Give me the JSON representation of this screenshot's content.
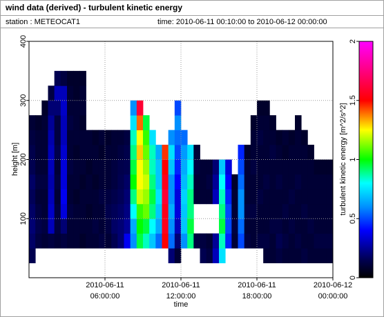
{
  "chart_data": {
    "type": "heatmap",
    "title": "wind data (derived) - turbulent kinetic energy",
    "station": "station : METEOCAT1",
    "time_range": "time: 2010-06-11 00:10:00 to 2010-06-12 00:00:00",
    "xlabel": "time",
    "ylabel": "height [m]",
    "colorbar_label": "turbulent kinetic energy [m^2/s^2]",
    "grid": true,
    "xlim": [
      "2010-06-11T00:00",
      "2010-06-12T00:00"
    ],
    "xticks": [
      {
        "value": "2010-06-11T06:00",
        "label": [
          "2010-06-11",
          "06:00:00"
        ]
      },
      {
        "value": "2010-06-11T12:00",
        "label": [
          "2010-06-11",
          "12:00:00"
        ]
      },
      {
        "value": "2010-06-11T18:00",
        "label": [
          "2010-06-11",
          "18:00:00"
        ]
      },
      {
        "value": "2010-06-12T00:00",
        "label": [
          "2010-06-12",
          "00:00:00"
        ]
      }
    ],
    "ylim": [
      0,
      400
    ],
    "yticks": [
      100,
      200,
      300,
      400
    ],
    "clim": [
      0,
      2
    ],
    "cticks": [
      0,
      0.5,
      1,
      1.5,
      2
    ],
    "colorscale": [
      [
        0,
        "#000000"
      ],
      [
        0.15,
        "#000050"
      ],
      [
        0.4,
        "#0000ff"
      ],
      [
        0.6,
        "#0090ff"
      ],
      [
        0.8,
        "#00ffff"
      ],
      [
        1,
        "#00ff00"
      ],
      [
        1.25,
        "#ffff00"
      ],
      [
        1.5,
        "#ff0000"
      ],
      [
        2,
        "#ff00ff"
      ]
    ],
    "x_edges": [
      "2010-06-11T00:00",
      "2010-06-11T00:30",
      "2010-06-11T01:00",
      "2010-06-11T01:30",
      "2010-06-11T02:00",
      "2010-06-11T02:30",
      "2010-06-11T03:00",
      "2010-06-11T03:30",
      "2010-06-11T04:00",
      "2010-06-11T04:30",
      "2010-06-11T05:00",
      "2010-06-11T05:30",
      "2010-06-11T06:00",
      "2010-06-11T06:30",
      "2010-06-11T07:00",
      "2010-06-11T07:30",
      "2010-06-11T08:00",
      "2010-06-11T08:30",
      "2010-06-11T09:00",
      "2010-06-11T09:30",
      "2010-06-11T10:00",
      "2010-06-11T10:30",
      "2010-06-11T11:00",
      "2010-06-11T11:30",
      "2010-06-11T12:00",
      "2010-06-11T12:30",
      "2010-06-11T13:00",
      "2010-06-11T13:30",
      "2010-06-11T14:00",
      "2010-06-11T14:30",
      "2010-06-11T15:00",
      "2010-06-11T15:30",
      "2010-06-11T16:00",
      "2010-06-11T16:30",
      "2010-06-11T17:00",
      "2010-06-11T17:30",
      "2010-06-11T18:00",
      "2010-06-11T18:30",
      "2010-06-11T19:00",
      "2010-06-11T19:30",
      "2010-06-11T20:00",
      "2010-06-11T20:30",
      "2010-06-11T21:00",
      "2010-06-11T21:30",
      "2010-06-11T22:00",
      "2010-06-11T22:30",
      "2010-06-11T23:00",
      "2010-06-11T23:30",
      "2010-06-12T00:00"
    ],
    "y_edges": [
      0,
      25,
      50,
      75,
      100,
      125,
      150,
      175,
      200,
      225,
      250,
      275,
      300,
      325,
      350,
      375,
      400
    ],
    "values": [
      [
        null,
        0.15,
        0.18,
        0.2,
        0.18,
        0.16,
        0.18,
        0.15,
        0.14,
        0.12,
        0.1,
        null,
        null,
        null,
        null,
        null
      ],
      [
        null,
        null,
        0.12,
        0.14,
        0.12,
        0.1,
        0.12,
        0.1,
        0.1,
        0.1,
        0.08,
        null,
        null,
        null,
        null,
        null
      ],
      [
        null,
        null,
        0.1,
        0.12,
        0.1,
        0.1,
        0.12,
        0.1,
        0.1,
        0.1,
        0.1,
        0.08,
        null,
        null,
        null,
        null
      ],
      [
        null,
        null,
        0.12,
        0.3,
        0.32,
        0.3,
        0.28,
        0.3,
        0.3,
        0.28,
        0.25,
        0.2,
        0.12,
        null,
        null,
        null
      ],
      [
        null,
        null,
        0.1,
        0.12,
        0.12,
        0.1,
        0.12,
        0.1,
        0.14,
        0.12,
        0.12,
        0.2,
        0.3,
        0.15,
        null,
        null
      ],
      [
        null,
        null,
        0.12,
        0.2,
        0.35,
        0.38,
        0.35,
        0.35,
        0.33,
        0.3,
        0.3,
        0.32,
        0.3,
        0.12,
        null,
        null
      ],
      [
        null,
        null,
        0.1,
        0.1,
        0.12,
        0.1,
        0.1,
        0.12,
        0.1,
        0.1,
        0.12,
        0.1,
        0.1,
        0.08,
        null,
        null
      ],
      [
        null,
        null,
        0.1,
        0.1,
        0.1,
        0.08,
        0.1,
        0.1,
        0.08,
        0.1,
        0.1,
        0.1,
        0.08,
        0.08,
        null,
        null
      ],
      [
        null,
        null,
        0.08,
        0.1,
        0.1,
        0.1,
        0.08,
        0.1,
        0.1,
        0.1,
        0.08,
        0.1,
        0.1,
        0.08,
        null,
        null
      ],
      [
        null,
        null,
        0.1,
        0.1,
        0.08,
        0.1,
        0.1,
        0.08,
        0.1,
        0.1,
        null,
        null,
        null,
        null,
        null,
        null
      ],
      [
        null,
        null,
        0.1,
        0.12,
        0.1,
        0.1,
        0.08,
        0.1,
        0.1,
        0.08,
        null,
        null,
        null,
        null,
        null,
        null
      ],
      [
        null,
        null,
        0.12,
        0.1,
        0.1,
        0.12,
        0.1,
        0.1,
        0.08,
        0.1,
        null,
        null,
        null,
        null,
        null,
        null
      ],
      [
        null,
        null,
        0.1,
        0.12,
        0.14,
        0.12,
        0.1,
        0.1,
        0.1,
        0.08,
        null,
        null,
        null,
        null,
        null,
        null
      ],
      [
        null,
        null,
        0.15,
        0.18,
        0.16,
        0.14,
        0.12,
        0.12,
        0.1,
        0.1,
        null,
        null,
        null,
        null,
        null,
        null
      ],
      [
        null,
        null,
        0.2,
        0.2,
        0.18,
        0.16,
        0.15,
        0.14,
        0.12,
        0.1,
        null,
        null,
        null,
        null,
        null,
        null
      ],
      [
        null,
        null,
        0.38,
        0.25,
        0.22,
        0.2,
        0.18,
        0.15,
        0.14,
        0.12,
        null,
        null,
        null,
        null,
        null,
        null
      ],
      [
        null,
        null,
        0.6,
        0.65,
        0.8,
        0.9,
        1.0,
        0.95,
        0.9,
        0.85,
        0.75,
        0.6,
        null,
        null,
        null,
        null
      ],
      [
        null,
        null,
        0.95,
        1.0,
        1.05,
        1.2,
        1.25,
        1.25,
        1.3,
        1.25,
        1.4,
        1.6,
        null,
        null,
        null,
        null
      ],
      [
        null,
        null,
        0.85,
        0.95,
        1.1,
        1.15,
        1.2,
        1.15,
        1.1,
        1.05,
        0.95,
        null,
        null,
        null,
        null,
        null
      ],
      [
        null,
        null,
        0.7,
        0.8,
        0.9,
        0.95,
        0.9,
        0.85,
        0.85,
        0.75,
        null,
        null,
        null,
        null,
        null,
        null
      ],
      [
        null,
        null,
        0.55,
        0.65,
        0.7,
        0.75,
        0.7,
        0.7,
        0.65,
        null,
        null,
        null,
        null,
        null,
        null,
        null
      ],
      [
        null,
        null,
        1.5,
        1.55,
        1.55,
        1.6,
        1.55,
        1.5,
        1.45,
        null,
        null,
        null,
        null,
        null,
        null,
        null
      ],
      [
        null,
        0.2,
        0.55,
        0.6,
        0.65,
        0.6,
        0.6,
        0.7,
        0.75,
        0.6,
        null,
        null,
        null,
        null,
        null,
        null
      ],
      [
        null,
        0.1,
        0.2,
        0.3,
        0.35,
        0.35,
        0.4,
        0.45,
        0.5,
        0.55,
        0.6,
        0.5,
        null,
        null,
        null,
        null
      ],
      [
        null,
        null,
        0.6,
        0.7,
        0.7,
        0.72,
        0.68,
        0.65,
        0.62,
        0.55,
        null,
        null,
        null,
        null,
        null,
        null
      ],
      [
        null,
        null,
        0.9,
        0.95,
        0.9,
        0.9,
        0.85,
        0.8,
        0.75,
        null,
        null,
        null,
        null,
        null,
        null,
        null
      ],
      [
        null,
        null,
        0.12,
        null,
        null,
        0.1,
        0.1,
        0.12,
        0.1,
        null,
        null,
        null,
        null,
        null,
        null,
        null
      ],
      [
        null,
        0.15,
        0.12,
        null,
        null,
        0.1,
        0.1,
        0.1,
        null,
        null,
        null,
        null,
        null,
        null,
        null,
        null
      ],
      [
        null,
        0.12,
        0.1,
        null,
        null,
        0.1,
        0.12,
        0.1,
        null,
        null,
        null,
        null,
        null,
        null,
        null,
        null
      ],
      [
        null,
        0.3,
        0.25,
        null,
        null,
        0.3,
        0.25,
        0.2,
        null,
        null,
        null,
        null,
        null,
        null,
        null,
        null
      ],
      [
        null,
        0.75,
        0.85,
        0.95,
        0.9,
        0.85,
        0.8,
        0.7,
        null,
        null,
        null,
        null,
        null,
        null,
        null,
        null
      ],
      [
        null,
        null,
        0.45,
        0.5,
        0.5,
        0.45,
        0.4,
        0.35,
        null,
        null,
        null,
        null,
        null,
        null,
        null,
        null
      ],
      [
        null,
        null,
        0.1,
        0.12,
        0.1,
        0.1,
        0.08,
        null,
        null,
        null,
        null,
        null,
        null,
        null,
        null,
        null
      ],
      [
        null,
        null,
        0.5,
        0.55,
        0.6,
        0.6,
        0.55,
        0.5,
        0.45,
        null,
        null,
        null,
        null,
        null,
        null,
        null
      ],
      [
        null,
        null,
        0.12,
        0.1,
        0.12,
        0.1,
        0.1,
        0.1,
        0.08,
        null,
        null,
        null,
        null,
        null,
        null,
        null
      ],
      [
        null,
        null,
        0.1,
        0.1,
        0.12,
        0.1,
        0.1,
        0.12,
        0.1,
        0.1,
        0.08,
        null,
        null,
        null,
        null,
        null
      ],
      [
        null,
        null,
        0.12,
        0.1,
        0.1,
        0.12,
        0.1,
        0.1,
        0.1,
        0.12,
        0.1,
        0.08,
        null,
        null,
        null,
        null
      ],
      [
        null,
        0.1,
        0.12,
        0.1,
        0.1,
        0.1,
        0.12,
        0.1,
        0.1,
        0.1,
        0.1,
        0.08,
        null,
        null,
        null,
        null
      ],
      [
        null,
        0.1,
        0.1,
        0.12,
        0.1,
        0.1,
        0.1,
        0.1,
        0.12,
        0.1,
        0.08,
        null,
        null,
        null,
        null,
        null
      ],
      [
        null,
        0.12,
        0.15,
        0.12,
        0.1,
        0.1,
        0.12,
        0.1,
        0.1,
        0.08,
        null,
        null,
        null,
        null,
        null,
        null
      ],
      [
        null,
        0.1,
        0.12,
        0.1,
        0.12,
        0.1,
        0.1,
        0.1,
        0.08,
        0.1,
        null,
        null,
        null,
        null,
        null,
        null
      ],
      [
        null,
        0.1,
        0.1,
        0.12,
        0.1,
        0.12,
        0.1,
        0.1,
        0.1,
        0.08,
        null,
        null,
        null,
        null,
        null,
        null
      ],
      [
        null,
        0.1,
        0.12,
        0.1,
        0.1,
        0.1,
        0.12,
        0.1,
        0.1,
        0.1,
        0.08,
        null,
        null,
        null,
        null,
        null
      ],
      [
        null,
        0.12,
        0.1,
        0.1,
        0.12,
        0.1,
        0.1,
        0.1,
        0.1,
        0.08,
        null,
        null,
        null,
        null,
        null,
        null
      ],
      [
        null,
        0.1,
        0.1,
        0.12,
        0.1,
        0.1,
        0.1,
        0.1,
        0.08,
        null,
        null,
        null,
        null,
        null,
        null,
        null
      ],
      [
        null,
        0.1,
        0.12,
        0.1,
        0.1,
        0.1,
        0.1,
        0.08,
        null,
        null,
        null,
        null,
        null,
        null,
        null,
        null
      ],
      [
        null,
        0.1,
        0.12,
        0.1,
        0.1,
        0.1,
        0.1,
        0.08,
        null,
        null,
        null,
        null,
        null,
        null,
        null,
        null
      ],
      [
        null,
        0.1,
        0.12,
        0.1,
        0.1,
        0.1,
        0.1,
        0.08,
        null,
        null,
        null,
        null,
        null,
        null,
        null,
        null
      ]
    ]
  }
}
